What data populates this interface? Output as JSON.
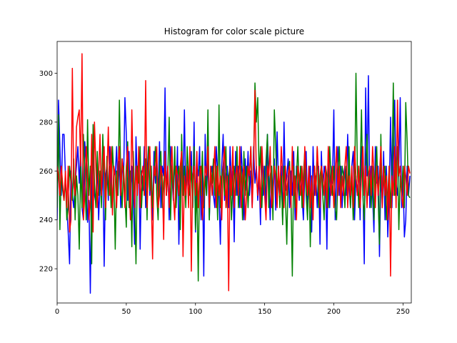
{
  "chart_data": {
    "type": "line",
    "title": "Histogram for color scale picture",
    "xlim": [
      0,
      256
    ],
    "ylim": [
      206,
      313
    ],
    "xticks": [
      0,
      50,
      100,
      150,
      200,
      250
    ],
    "yticks": [
      220,
      240,
      260,
      280,
      300
    ],
    "grid": false,
    "x": [
      0,
      1,
      2,
      3,
      4,
      5,
      6,
      7,
      8,
      9,
      10,
      11,
      12,
      13,
      14,
      15,
      16,
      17,
      18,
      19,
      20,
      21,
      22,
      23,
      24,
      25,
      26,
      27,
      28,
      29,
      30,
      31,
      32,
      33,
      34,
      35,
      36,
      37,
      38,
      39,
      40,
      41,
      42,
      43,
      44,
      45,
      46,
      47,
      48,
      49,
      50,
      51,
      52,
      53,
      54,
      55,
      56,
      57,
      58,
      59,
      60,
      61,
      62,
      63,
      64,
      65,
      66,
      67,
      68,
      69,
      70,
      71,
      72,
      73,
      74,
      75,
      76,
      77,
      78,
      79,
      80,
      81,
      82,
      83,
      84,
      85,
      86,
      87,
      88,
      89,
      90,
      91,
      92,
      93,
      94,
      95,
      96,
      97,
      98,
      99,
      100,
      101,
      102,
      103,
      104,
      105,
      106,
      107,
      108,
      109,
      110,
      111,
      112,
      113,
      114,
      115,
      116,
      117,
      118,
      119,
      120,
      121,
      122,
      123,
      124,
      125,
      126,
      127,
      128,
      129,
      130,
      131,
      132,
      133,
      134,
      135,
      136,
      137,
      138,
      139,
      140,
      141,
      142,
      143,
      144,
      145,
      146,
      147,
      148,
      149,
      150,
      151,
      152,
      153,
      154,
      155,
      156,
      157,
      158,
      159,
      160,
      161,
      162,
      163,
      164,
      165,
      166,
      167,
      168,
      169,
      170,
      171,
      172,
      173,
      174,
      175,
      176,
      177,
      178,
      179,
      180,
      181,
      182,
      183,
      184,
      185,
      186,
      187,
      188,
      189,
      190,
      191,
      192,
      193,
      194,
      195,
      196,
      197,
      198,
      199,
      200,
      201,
      202,
      203,
      204,
      205,
      206,
      207,
      208,
      209,
      210,
      211,
      212,
      213,
      214,
      215,
      216,
      217,
      218,
      219,
      220,
      221,
      222,
      223,
      224,
      225,
      226,
      227,
      228,
      229,
      230,
      231,
      232,
      233,
      234,
      235,
      236,
      237,
      238,
      239,
      240,
      241,
      242,
      243,
      244,
      245,
      246,
      247,
      248,
      249,
      250,
      251,
      252,
      253,
      254,
      255
    ],
    "series": [
      {
        "color": "#0000ff",
        "values": [
          240,
          289,
          270,
          250,
          275,
          275,
          258,
          245,
          235,
          222,
          260,
          250,
          245,
          255,
          262,
          270,
          255,
          268,
          245,
          240,
          272,
          262,
          239,
          248,
          210,
          258,
          270,
          250,
          247,
          262,
          240,
          255,
          250,
          263,
          221,
          258,
          262,
          248,
          270,
          255,
          245,
          260,
          258,
          270,
          252,
          264,
          245,
          265,
          255,
          290,
          275,
          248,
          268,
          240,
          262,
          250,
          230,
          274,
          255,
          265,
          228,
          260,
          252,
          270,
          245,
          258,
          270,
          250,
          262,
          240,
          268,
          255,
          264,
          250,
          272,
          245,
          262,
          258,
          294,
          250,
          262,
          240,
          270,
          258,
          248,
          265,
          252,
          270,
          230,
          258,
          262,
          250,
          285,
          248,
          262,
          255,
          250,
          268,
          245,
          280,
          235,
          262,
          258,
          270,
          240,
          262,
          217,
          275,
          250,
          265,
          240,
          258,
          262,
          250,
          245,
          270,
          260,
          250,
          230,
          262,
          275,
          248,
          258,
          262,
          245,
          270,
          255,
          260,
          231,
          268,
          250,
          262,
          245,
          270,
          258,
          240,
          265,
          252,
          268,
          250,
          260,
          245,
          270,
          255,
          262,
          248,
          258,
          238,
          270,
          250,
          262,
          245,
          275,
          258,
          240,
          262,
          250,
          265,
          244,
          276,
          255,
          248,
          262,
          240,
          280,
          252,
          258,
          265,
          245,
          260,
          250,
          268,
          240,
          262,
          255,
          248,
          262,
          250,
          240,
          258,
          268,
          245,
          255,
          262,
          235,
          270,
          250,
          258,
          245,
          262,
          230,
          268,
          250,
          262,
          258,
          228,
          270,
          245,
          262,
          255,
          285,
          240,
          258,
          270,
          250,
          262,
          245,
          258,
          262,
          250,
          275,
          255,
          245,
          262,
          268,
          240,
          258,
          250,
          262,
          240,
          270,
          255,
          222,
          294,
          258,
          299,
          245,
          262,
          250,
          235,
          270,
          255,
          262,
          225,
          258,
          248,
          268,
          240,
          262,
          233,
          250,
          282,
          245,
          268,
          289,
          255,
          250,
          262,
          290,
          245,
          258,
          233,
          240,
          262,
          250,
          258
        ]
      },
      {
        "color": "#008000",
        "values": [
          245,
          283,
          236,
          260,
          252,
          248,
          257,
          240,
          245,
          262,
          255,
          248,
          265,
          240,
          258,
          250,
          228,
          262,
          245,
          275,
          258,
          240,
          281,
          250,
          262,
          222,
          279,
          255,
          245,
          268,
          250,
          260,
          245,
          275,
          258,
          240,
          266,
          250,
          262,
          245,
          270,
          258,
          228,
          260,
          250,
          289,
          258,
          245,
          262,
          250,
          237,
          272,
          245,
          260,
          229,
          268,
          250,
          222,
          262,
          255,
          270,
          245,
          258,
          250,
          265,
          240,
          270,
          252,
          262,
          245,
          258,
          270,
          250,
          240,
          262,
          268,
          245,
          255,
          262,
          250,
          258,
          282,
          240,
          262,
          250,
          270,
          245,
          258,
          262,
          236,
          275,
          250,
          262,
          245,
          270,
          258,
          250,
          262,
          245,
          270,
          236,
          255,
          215,
          262,
          250,
          268,
          245,
          258,
          250,
          285,
          240,
          262,
          255,
          265,
          250,
          262,
          240,
          287,
          245,
          258,
          262,
          250,
          270,
          245,
          258,
          262,
          240,
          255,
          262,
          250,
          270,
          245,
          258,
          262,
          240,
          268,
          250,
          262,
          245,
          258,
          270,
          250,
          262,
          296,
          280,
          290,
          258,
          270,
          245,
          262,
          250,
          264,
          275,
          245,
          258,
          262,
          240,
          285,
          270,
          250,
          262,
          245,
          258,
          238,
          262,
          250,
          230,
          258,
          264,
          250,
          217,
          262,
          245,
          258,
          270,
          250,
          262,
          245,
          258,
          268,
          250,
          240,
          262,
          229,
          258,
          245,
          262,
          250,
          270,
          245,
          258,
          262,
          250,
          240,
          262,
          258,
          245,
          270,
          258,
          250,
          262,
          245,
          240,
          258,
          270,
          250,
          262,
          258,
          245,
          262,
          250,
          270,
          245,
          258,
          240,
          250,
          300,
          262,
          245,
          258,
          285,
          250,
          240,
          262,
          275,
          250,
          258,
          245,
          262,
          240,
          258,
          270,
          250,
          230,
          275,
          245,
          258,
          262,
          240,
          250,
          262,
          245,
          258,
          296,
          250,
          262,
          270,
          236,
          258,
          250,
          262,
          245,
          288,
          272,
          250,
          249
        ]
      },
      {
        "color": "#ff0000",
        "values": [
          262,
          258,
          250,
          262,
          255,
          248,
          260,
          245,
          262,
          235,
          240,
          302,
          255,
          250,
          278,
          282,
          285,
          262,
          308,
          240,
          250,
          270,
          258,
          240,
          248,
          275,
          235,
          280,
          262,
          245,
          258,
          275,
          250,
          262,
          270,
          245,
          258,
          278,
          250,
          270,
          242,
          262,
          258,
          245,
          262,
          270,
          250,
          265,
          258,
          245,
          262,
          270,
          255,
          240,
          285,
          258,
          245,
          262,
          250,
          270,
          245,
          258,
          262,
          250,
          297,
          245,
          262,
          270,
          250,
          224,
          262,
          258,
          270,
          245,
          250,
          262,
          258,
          232,
          268,
          250,
          262,
          245,
          258,
          270,
          250,
          240,
          262,
          258,
          250,
          262,
          268,
          225,
          258,
          250,
          262,
          245,
          270,
          219,
          258,
          262,
          250,
          268,
          245,
          258,
          262,
          240,
          250,
          262,
          258,
          270,
          245,
          262,
          250,
          258,
          270,
          245,
          262,
          250,
          258,
          240,
          262,
          270,
          245,
          258,
          211,
          262,
          250,
          270,
          245,
          258,
          262,
          250,
          270,
          245,
          258,
          262,
          240,
          250,
          262,
          258,
          270,
          245,
          262,
          293,
          258,
          250,
          262,
          245,
          270,
          258,
          250,
          240,
          262,
          258,
          270,
          245,
          250,
          262,
          258,
          245,
          262,
          250,
          270,
          258,
          245,
          262,
          250,
          258,
          262,
          245,
          270,
          250,
          258,
          240,
          262,
          258,
          250,
          262,
          245,
          270,
          258,
          250,
          262,
          245,
          258,
          240,
          262,
          250,
          270,
          258,
          245,
          262,
          258,
          250,
          262,
          245,
          270,
          258,
          250,
          262,
          245,
          258,
          270,
          250,
          262,
          245,
          258,
          250,
          262,
          270,
          245,
          258,
          250,
          262,
          245,
          270,
          258,
          250,
          262,
          245,
          258,
          270,
          250,
          262,
          245,
          258,
          262,
          250,
          270,
          258,
          245,
          262,
          250,
          258,
          270,
          245,
          262,
          250,
          258,
          240,
          262,
          217,
          258,
          250,
          270,
          245,
          289,
          258,
          262,
          250,
          245,
          262,
          258,
          250,
          262,
          259
        ]
      }
    ]
  }
}
